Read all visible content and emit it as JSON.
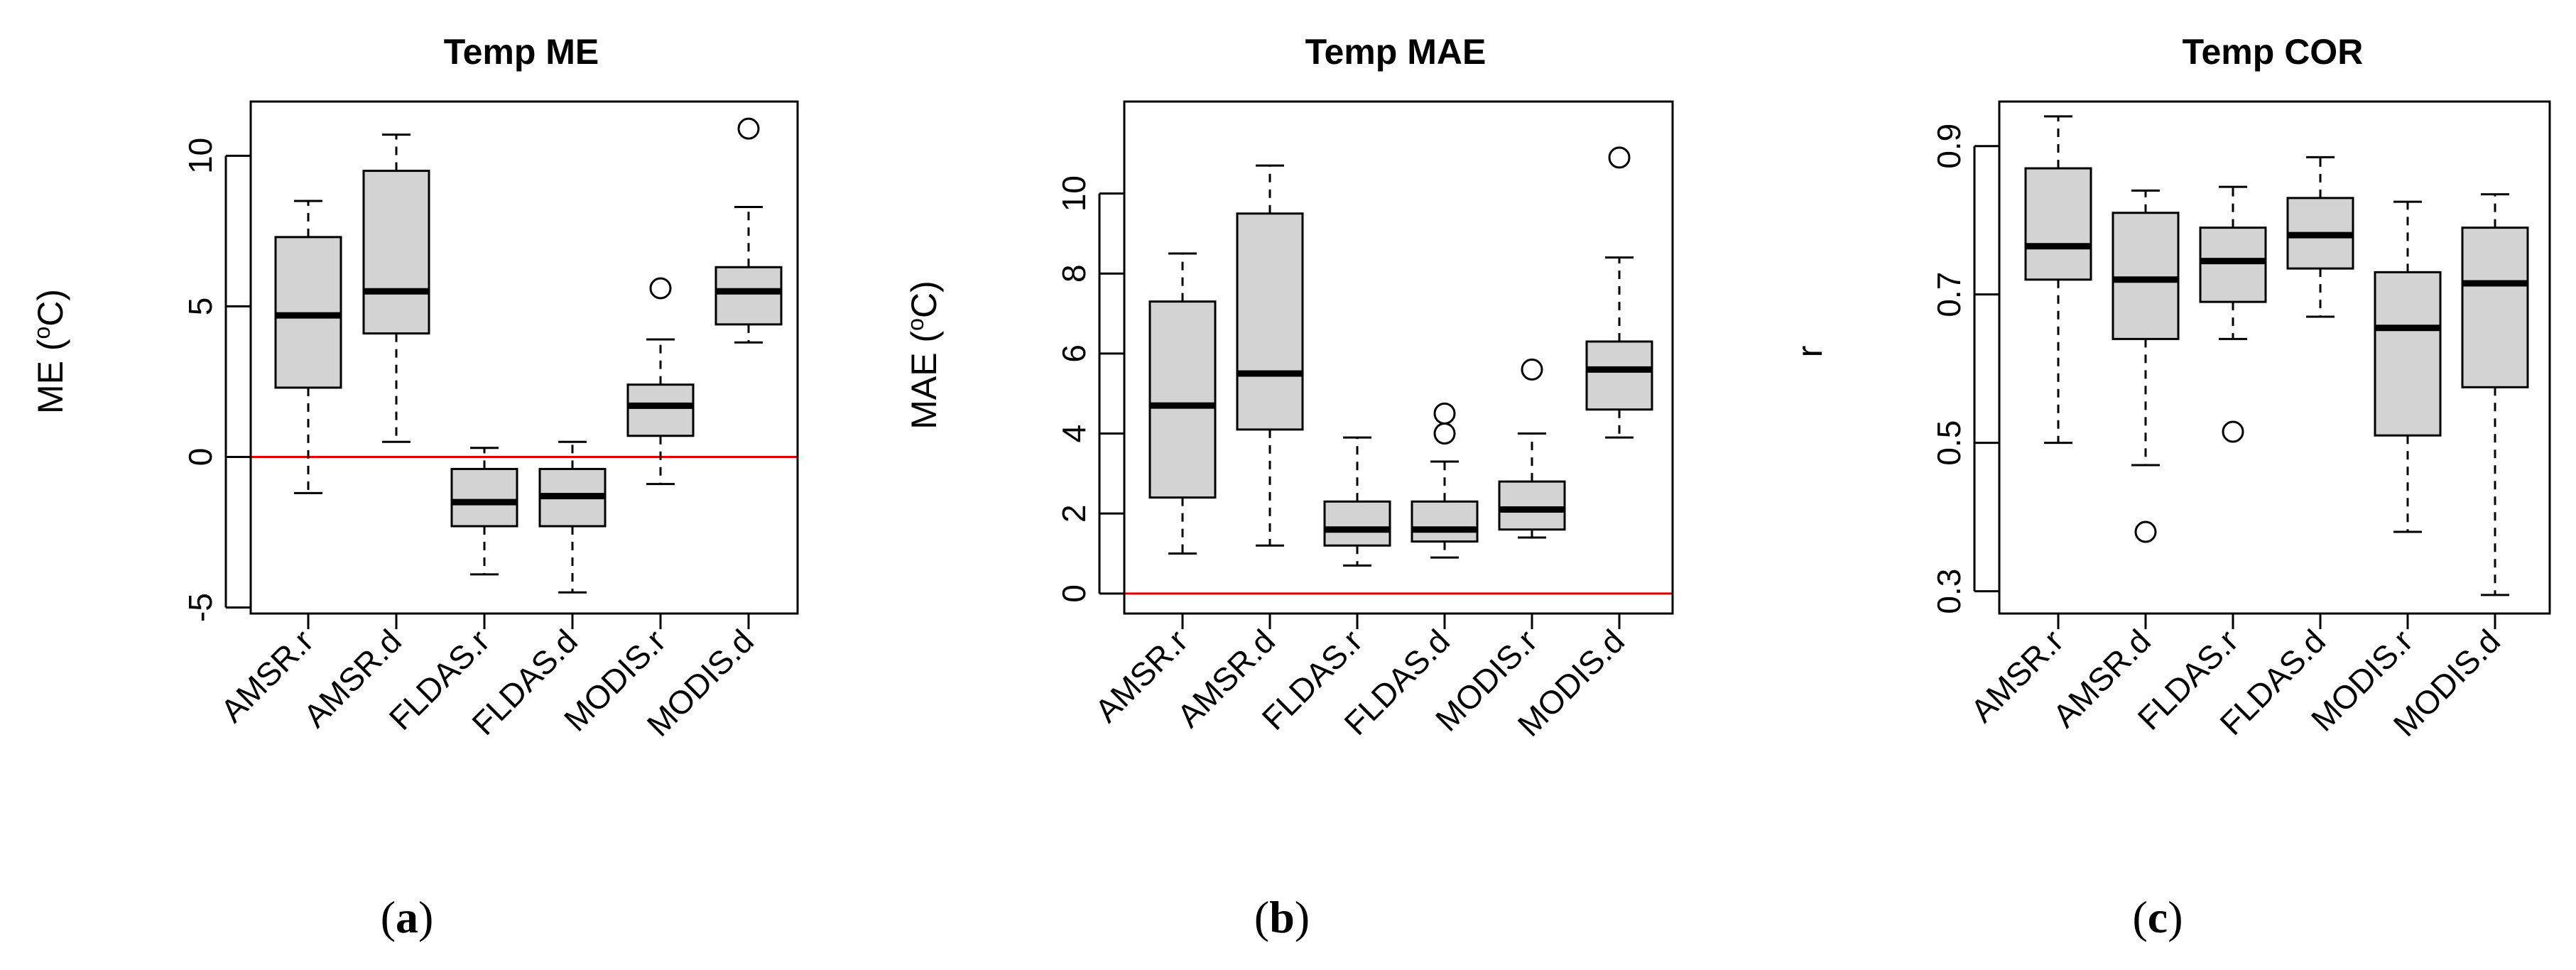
{
  "chart_data": [
    {
      "type": "boxplot",
      "title": "Temp ME",
      "ylabel": "ME (°C)",
      "ylabel_prefix": "ME (",
      "ylabel_sup": "o",
      "ylabel_suffix": "C)",
      "panel_letter": "a",
      "categories": [
        "AMSR.r",
        "AMSR.d",
        "FLDAS.r",
        "FLDAS.d",
        "MODIS.r",
        "MODIS.d"
      ],
      "ylim": [
        -5.2,
        11.8
      ],
      "yticks": [
        -5,
        0,
        5,
        10
      ],
      "ytick_labels": [
        "-5",
        "0",
        "5",
        "10"
      ],
      "reference_line": 0,
      "boxes": [
        {
          "min": -1.2,
          "q1": 2.3,
          "median": 4.7,
          "q3": 7.3,
          "max": 8.5,
          "outliers": []
        },
        {
          "min": 0.5,
          "q1": 4.1,
          "median": 5.5,
          "q3": 9.5,
          "max": 10.7,
          "outliers": []
        },
        {
          "min": -3.9,
          "q1": -2.3,
          "median": -1.5,
          "q3": -0.4,
          "max": 0.3,
          "outliers": []
        },
        {
          "min": -4.5,
          "q1": -2.3,
          "median": -1.3,
          "q3": -0.4,
          "max": 0.5,
          "outliers": []
        },
        {
          "min": -0.9,
          "q1": 0.7,
          "median": 1.7,
          "q3": 2.4,
          "max": 3.9,
          "outliers": [
            5.6
          ]
        },
        {
          "min": 3.8,
          "q1": 4.4,
          "median": 5.5,
          "q3": 6.3,
          "max": 8.3,
          "outliers": [
            10.9
          ]
        }
      ]
    },
    {
      "type": "boxplot",
      "title": "Temp MAE",
      "ylabel": "MAE (°C)",
      "ylabel_prefix": "MAE (",
      "ylabel_sup": "o",
      "ylabel_suffix": "C)",
      "panel_letter": "b",
      "categories": [
        "AMSR.r",
        "AMSR.d",
        "FLDAS.r",
        "FLDAS.d",
        "MODIS.r",
        "MODIS.d"
      ],
      "ylim": [
        -0.5,
        12.3
      ],
      "yticks": [
        0,
        2,
        4,
        6,
        8,
        10
      ],
      "ytick_labels": [
        "0",
        "2",
        "4",
        "6",
        "8",
        "10"
      ],
      "reference_line": 0,
      "boxes": [
        {
          "min": 1.0,
          "q1": 2.4,
          "median": 4.7,
          "q3": 7.3,
          "max": 8.5,
          "outliers": []
        },
        {
          "min": 1.2,
          "q1": 4.1,
          "median": 5.5,
          "q3": 9.5,
          "max": 10.7,
          "outliers": []
        },
        {
          "min": 0.7,
          "q1": 1.2,
          "median": 1.6,
          "q3": 2.3,
          "max": 3.9,
          "outliers": []
        },
        {
          "min": 0.9,
          "q1": 1.3,
          "median": 1.6,
          "q3": 2.3,
          "max": 3.3,
          "outliers": [
            4.0,
            4.5
          ]
        },
        {
          "min": 1.4,
          "q1": 1.6,
          "median": 2.1,
          "q3": 2.8,
          "max": 4.0,
          "outliers": [
            5.6
          ]
        },
        {
          "min": 3.9,
          "q1": 4.6,
          "median": 5.6,
          "q3": 6.3,
          "max": 8.4,
          "outliers": [
            10.9
          ]
        }
      ]
    },
    {
      "type": "boxplot",
      "title": "Temp COR",
      "ylabel": "r",
      "panel_letter": "c",
      "categories": [
        "AMSR.r",
        "AMSR.d",
        "FLDAS.r",
        "FLDAS.d",
        "MODIS.r",
        "MODIS.d"
      ],
      "ylim": [
        0.27,
        0.96
      ],
      "yticks": [
        0.3,
        0.5,
        0.7,
        0.9
      ],
      "ytick_labels": [
        "0.3",
        "0.5",
        "0.7",
        "0.9"
      ],
      "boxes": [
        {
          "min": 0.5,
          "q1": 0.72,
          "median": 0.765,
          "q3": 0.87,
          "max": 0.94,
          "outliers": []
        },
        {
          "min": 0.47,
          "q1": 0.64,
          "median": 0.72,
          "q3": 0.81,
          "max": 0.84,
          "outliers": [
            0.38
          ]
        },
        {
          "min": 0.64,
          "q1": 0.69,
          "median": 0.745,
          "q3": 0.79,
          "max": 0.845,
          "outliers": [
            0.515
          ]
        },
        {
          "min": 0.67,
          "q1": 0.735,
          "median": 0.78,
          "q3": 0.83,
          "max": 0.885,
          "outliers": []
        },
        {
          "min": 0.38,
          "q1": 0.51,
          "median": 0.655,
          "q3": 0.73,
          "max": 0.825,
          "outliers": []
        },
        {
          "min": 0.295,
          "q1": 0.575,
          "median": 0.715,
          "q3": 0.79,
          "max": 0.835,
          "outliers": []
        }
      ]
    }
  ],
  "colors": {
    "box_fill": "#d3d3d3",
    "reference_line": "#e00000"
  }
}
